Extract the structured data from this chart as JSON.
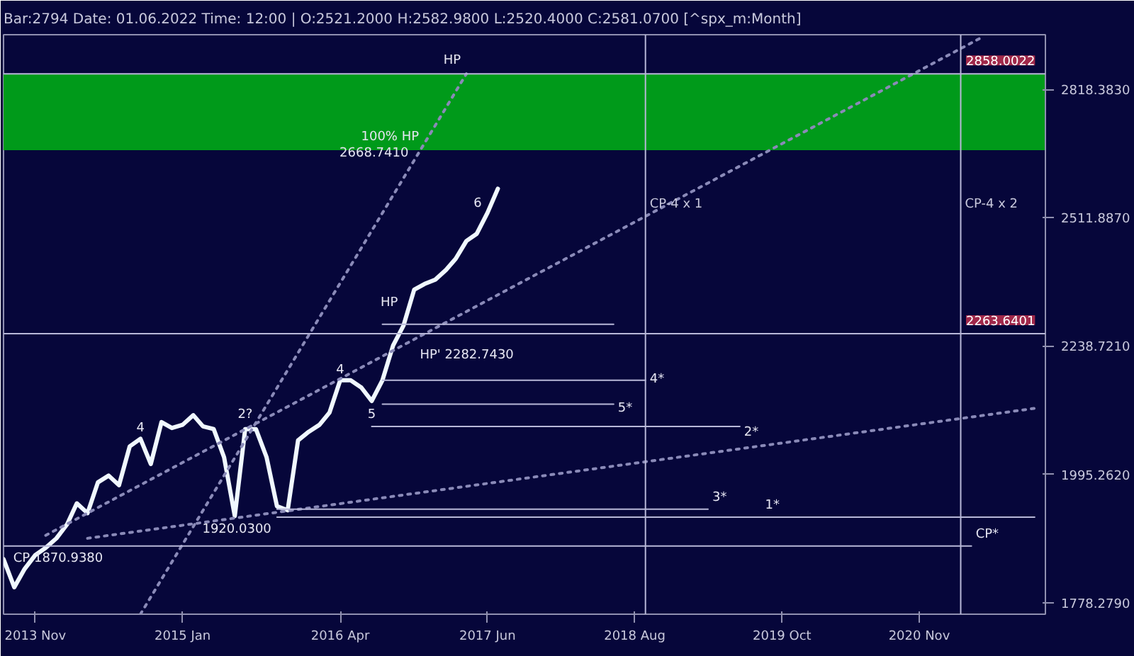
{
  "chart_data": {
    "type": "line",
    "title": "Bar:2794 Date: 01.06.2022 Time: 12:00 | O:2521.2000 H:2582.9800 L:2520.4000 C:2581.0700 [^spx_m:Month]",
    "log": "y",
    "grid": false,
    "xlim": [
      "2013-08",
      "2021-11"
    ],
    "ylim": [
      1760,
      2960
    ],
    "xticks": [
      {
        "value": "2013-11",
        "label": "2013 Nov"
      },
      {
        "value": "2015-01",
        "label": "2015 Jan"
      },
      {
        "value": "2016-04",
        "label": "2016 Apr"
      },
      {
        "value": "2017-06",
        "label": "2017 Jun"
      },
      {
        "value": "2018-08",
        "label": "2018 Aug"
      },
      {
        "value": "2019-10",
        "label": "2019 Oct"
      },
      {
        "value": "2020-11",
        "label": "2020 Nov"
      }
    ],
    "yticks": [
      {
        "value": 1778.279,
        "label": "1778.2790"
      },
      {
        "value": 1995.262,
        "label": "1995.2620"
      },
      {
        "value": 2238.721,
        "label": "2238.7210"
      },
      {
        "value": 2511.887,
        "label": "2511.8870"
      },
      {
        "value": 2818.383,
        "label": "2818.3830"
      }
    ],
    "series": [
      {
        "color": "#f0f8ff",
        "x": [
          "2013-08",
          "2013-09",
          "2013-10",
          "2013-11",
          "2013-12",
          "2014-01",
          "2014-02",
          "2014-03",
          "2014-04",
          "2014-05",
          "2014-06",
          "2014-07",
          "2014-08",
          "2014-09",
          "2014-10",
          "2014-11",
          "2014-12",
          "2015-01",
          "2015-02",
          "2015-03",
          "2015-04",
          "2015-05",
          "2015-06",
          "2015-07",
          "2015-08",
          "2015-09",
          "2015-10",
          "2015-11",
          "2015-12",
          "2016-01",
          "2016-02",
          "2016-03",
          "2016-04",
          "2016-05",
          "2016-06",
          "2016-07",
          "2016-08",
          "2016-09",
          "2016-10",
          "2016-11",
          "2016-12",
          "2017-01",
          "2017-02",
          "2017-03",
          "2017-04",
          "2017-05",
          "2017-06",
          "2017-07"
        ],
        "values": [
          1849,
          1803,
          1833,
          1856,
          1868,
          1884,
          1908,
          1944,
          1927,
          1981,
          1993,
          1976,
          2046,
          2060,
          2014,
          2091,
          2080,
          2086,
          2104,
          2083,
          2078,
          2026,
          1922,
          2078,
          2078,
          2026,
          1939,
          1932,
          2057,
          2073,
          2086,
          2109,
          2171,
          2171,
          2157,
          2131,
          2171,
          2240,
          2280,
          2355,
          2367,
          2376,
          2397,
          2421,
          2460,
          2476,
          2523,
          2578
        ]
      },
      {
        "color": "#8a8ab8",
        "line_style": "dotted",
        "x": [
          "2014-09",
          "2017-04"
        ],
        "values": [
          1760,
          2858
        ]
      },
      {
        "color": "#8a8ab8",
        "line_style": "dotted",
        "x": [
          "2013-12",
          "2021-05"
        ],
        "values": [
          1889,
          2953
        ]
      },
      {
        "color": "#8a8ab8",
        "line_style": "dotted",
        "x": [
          "2014-04",
          "2021-10"
        ],
        "values": [
          1884,
          2117
        ]
      },
      {
        "color": "#b8b8d8",
        "x": [
          "2016-08",
          "2018-06"
        ],
        "values": [
          2282.743,
          2282.743
        ]
      },
      {
        "color": "#b8b8d8",
        "x": [
          "2016-08",
          "2018-09"
        ],
        "values": [
          2171,
          2171
        ]
      },
      {
        "color": "#b8b8d8",
        "x": [
          "2016-08",
          "2018-06"
        ],
        "values": [
          2125,
          2125
        ]
      },
      {
        "color": "#b8b8d8",
        "x": [
          "2016-07",
          "2019-06"
        ],
        "values": [
          2083,
          2083
        ]
      },
      {
        "color": "#b8b8d8",
        "x": [
          "2015-10",
          "2019-03"
        ],
        "values": [
          1934,
          1934
        ]
      },
      {
        "color": "#b8b8d8",
        "x": [
          "2015-10",
          "2021-10"
        ],
        "values": [
          1920.03,
          1920.03
        ]
      },
      {
        "color": "#b8b8d8",
        "x": [
          "2013-08",
          "2021-04"
        ],
        "values": [
          1870.938,
          1870.938
        ]
      }
    ],
    "bands": [
      {
        "axis": "y",
        "from": 2668.741,
        "to": 2858.0022,
        "color": "#009a1a"
      }
    ],
    "ref_lines": [
      {
        "axis": "y",
        "value": 2858.0022,
        "label": "2858.0022",
        "color": "#b8b8d8"
      },
      {
        "axis": "y",
        "value": 2263.6401,
        "label": "2263.6401",
        "color": "#b8b8d8"
      },
      {
        "axis": "x",
        "value": "2018-09",
        "label": "CP-4 x 1",
        "color": "#b8b8d8"
      },
      {
        "axis": "x",
        "value": "2021-03",
        "label": "CP-4 x 2",
        "color": "#b8b8d8"
      }
    ],
    "annotations": [
      {
        "text": "HP",
        "x": "2017-04",
        "y": 2858.0022
      },
      {
        "text": "100% HP",
        "x": "2016-12",
        "y": 2668.741
      },
      {
        "text": "2668.7410",
        "x": "2016-11",
        "y": 2640
      },
      {
        "text": "6",
        "x": "2017-06",
        "y": 2523
      },
      {
        "text": "HP",
        "x": "2016-10",
        "y": 2300
      },
      {
        "text": "HP' 2282.7430",
        "x": "2016-11",
        "y": 2245
      },
      {
        "text": "4",
        "x": "2014-09",
        "y": 2060
      },
      {
        "text": "2?",
        "x": "2015-07",
        "y": 2078
      },
      {
        "text": "4",
        "x": "2016-04",
        "y": 2171
      },
      {
        "text": "5",
        "x": "2016-07",
        "y": 2131
      },
      {
        "text": "4*",
        "x": "2018-09",
        "y": 2150
      },
      {
        "text": "5*",
        "x": "2018-06",
        "y": 2095
      },
      {
        "text": "2*",
        "x": "2019-06",
        "y": 2050
      },
      {
        "text": "3*",
        "x": "2019-03",
        "y": 1934
      },
      {
        "text": "1*",
        "x": "2019-08",
        "y": 1920.03
      },
      {
        "text": "CP*",
        "x": "2021-04",
        "y": 1870.938
      },
      {
        "text": "1920.0300",
        "x": "2015-10",
        "y": 1920.03
      },
      {
        "text": "CP 1870.9380",
        "x": "2014-06",
        "y": 1870.938
      }
    ]
  }
}
